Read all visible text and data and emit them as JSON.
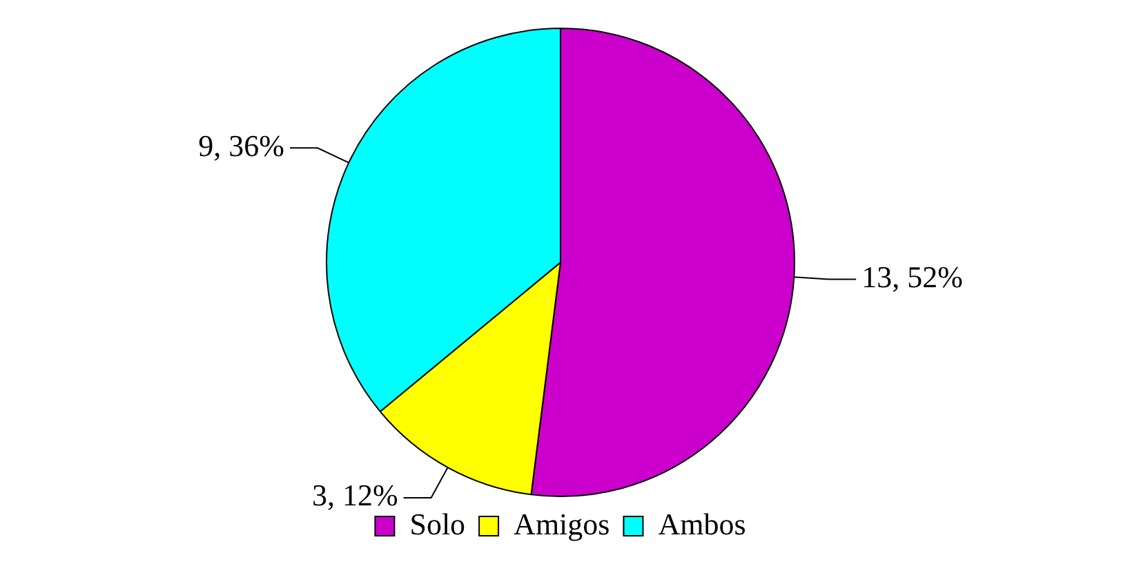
{
  "chart_data": {
    "type": "pie",
    "categories": [
      "Solo",
      "Amigos",
      "Ambos"
    ],
    "values": [
      13,
      3,
      9
    ],
    "colors": [
      "#cc00cc",
      "#ffff00",
      "#00ffff"
    ],
    "value_labels": [
      "13, 52%",
      "3, 12%",
      "9, 36%"
    ],
    "legend": "bottom"
  }
}
